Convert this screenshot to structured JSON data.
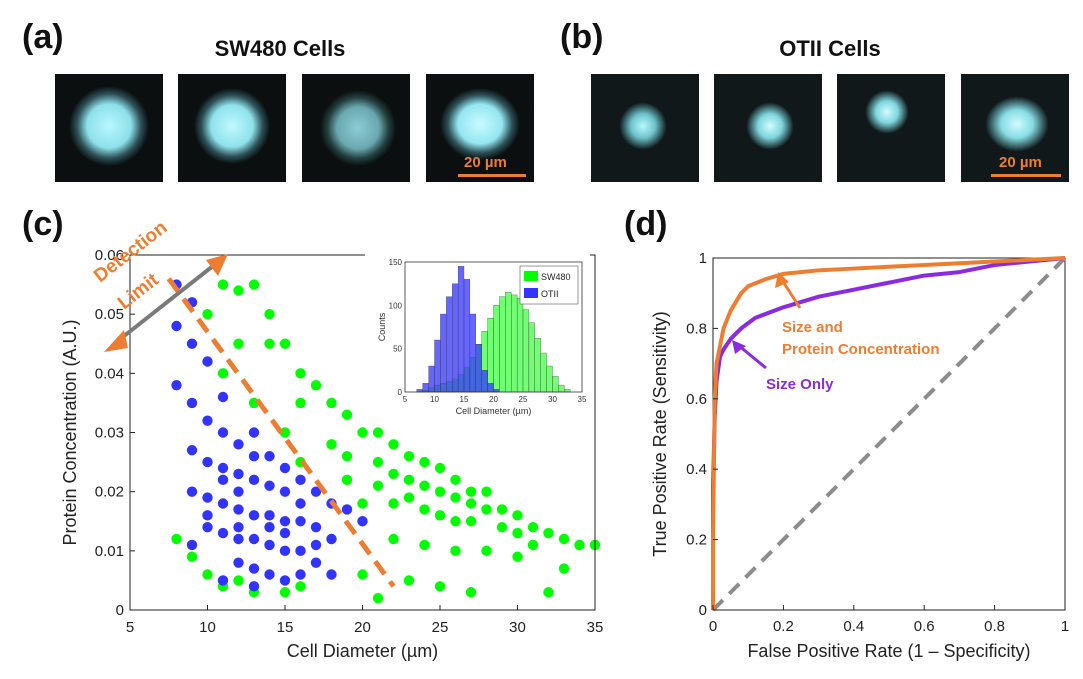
{
  "panels": {
    "a": {
      "label": "(a)",
      "title": "SW480 Cells",
      "scale_bar": "20 µm"
    },
    "b": {
      "label": "(b)",
      "title": "OTII Cells",
      "scale_bar": "20 µm"
    },
    "c": {
      "label": "(c)"
    },
    "d": {
      "label": "(d)"
    }
  },
  "colors": {
    "sw480": "#00ff00",
    "otii": "#3333ff",
    "accent_orange": "#ed7d31",
    "size_only_purple": "#8a2be2",
    "diagonal_gray": "#8c8c8c",
    "cell_glow": "#a8f0f8"
  },
  "annotations": {
    "detection": "Detection",
    "limit": "Limit",
    "size_protein_line1": "Size and",
    "size_protein_line2": "Protein Concentration",
    "size_only": "Size Only"
  },
  "chart_data": [
    {
      "id": "scatter",
      "type": "scatter",
      "xlabel": "Cell Diameter (µm)",
      "ylabel": "Protein Concentration (A.U.)",
      "xlim": [
        5,
        35
      ],
      "ylim": [
        0,
        0.06
      ],
      "xticks": [
        5,
        10,
        15,
        20,
        25,
        30,
        35
      ],
      "yticks": [
        0,
        0.01,
        0.02,
        0.03,
        0.04,
        0.05,
        0.06
      ],
      "ytick_labels": [
        "0",
        "0.01",
        "0.02",
        "0.03",
        "0.04",
        "0.05",
        "0.06"
      ],
      "grid": false,
      "series": [
        {
          "name": "SW480",
          "color": "#00ff00",
          "points": [
            [
              11,
              0.055
            ],
            [
              12,
              0.054
            ],
            [
              13,
              0.055
            ],
            [
              10,
              0.05
            ],
            [
              14,
              0.05
            ],
            [
              12,
              0.045
            ],
            [
              15,
              0.045
            ],
            [
              11,
              0.04
            ],
            [
              16,
              0.04
            ],
            [
              17,
              0.038
            ],
            [
              13,
              0.035
            ],
            [
              18,
              0.035
            ],
            [
              19,
              0.033
            ],
            [
              15,
              0.03
            ],
            [
              20,
              0.03
            ],
            [
              21,
              0.03
            ],
            [
              22,
              0.028
            ],
            [
              16,
              0.025
            ],
            [
              23,
              0.026
            ],
            [
              24,
              0.025
            ],
            [
              25,
              0.024
            ],
            [
              19,
              0.022
            ],
            [
              21,
              0.021
            ],
            [
              26,
              0.022
            ],
            [
              27,
              0.02
            ],
            [
              28,
              0.02
            ],
            [
              20,
              0.018
            ],
            [
              22,
              0.018
            ],
            [
              23,
              0.019
            ],
            [
              24,
              0.017
            ],
            [
              25,
              0.016
            ],
            [
              26,
              0.015
            ],
            [
              27,
              0.015
            ],
            [
              29,
              0.017
            ],
            [
              30,
              0.016
            ],
            [
              31,
              0.014
            ],
            [
              32,
              0.013
            ],
            [
              33,
              0.012
            ],
            [
              34,
              0.011
            ],
            [
              35,
              0.011
            ],
            [
              22,
              0.012
            ],
            [
              24,
              0.011
            ],
            [
              26,
              0.01
            ],
            [
              28,
              0.01
            ],
            [
              30,
              0.009
            ],
            [
              18,
              0.012
            ],
            [
              17,
              0.008
            ],
            [
              20,
              0.006
            ],
            [
              23,
              0.005
            ],
            [
              25,
              0.004
            ],
            [
              27,
              0.003
            ],
            [
              21,
              0.002
            ],
            [
              9,
              0.009
            ],
            [
              10,
              0.006
            ],
            [
              11,
              0.004
            ],
            [
              13,
              0.003
            ],
            [
              15,
              0.003
            ],
            [
              8,
              0.012
            ],
            [
              14,
              0.045
            ],
            [
              16,
              0.035
            ],
            [
              18,
              0.028
            ],
            [
              19,
              0.026
            ],
            [
              21,
              0.025
            ],
            [
              22,
              0.023
            ],
            [
              23,
              0.022
            ],
            [
              24,
              0.021
            ],
            [
              25,
              0.02
            ],
            [
              26,
              0.019
            ],
            [
              27,
              0.018
            ],
            [
              28,
              0.017
            ],
            [
              29,
              0.014
            ],
            [
              30,
              0.013
            ],
            [
              31,
              0.011
            ],
            [
              33,
              0.007
            ],
            [
              32,
              0.003
            ],
            [
              12,
              0.005
            ],
            [
              16,
              0.004
            ]
          ]
        },
        {
          "name": "OTII",
          "color": "#3333ff",
          "points": [
            [
              8,
              0.055
            ],
            [
              9,
              0.052
            ],
            [
              8,
              0.048
            ],
            [
              9,
              0.045
            ],
            [
              10,
              0.042
            ],
            [
              8,
              0.038
            ],
            [
              9,
              0.035
            ],
            [
              10,
              0.032
            ],
            [
              11,
              0.03
            ],
            [
              12,
              0.028
            ],
            [
              9,
              0.027
            ],
            [
              10,
              0.025
            ],
            [
              11,
              0.024
            ],
            [
              12,
              0.023
            ],
            [
              13,
              0.022
            ],
            [
              14,
              0.021
            ],
            [
              15,
              0.02
            ],
            [
              9,
              0.02
            ],
            [
              10,
              0.019
            ],
            [
              11,
              0.018
            ],
            [
              12,
              0.017
            ],
            [
              13,
              0.016
            ],
            [
              14,
              0.016
            ],
            [
              15,
              0.015
            ],
            [
              16,
              0.015
            ],
            [
              17,
              0.014
            ],
            [
              10,
              0.014
            ],
            [
              11,
              0.013
            ],
            [
              12,
              0.012
            ],
            [
              13,
              0.012
            ],
            [
              14,
              0.011
            ],
            [
              15,
              0.01
            ],
            [
              16,
              0.01
            ],
            [
              17,
              0.011
            ],
            [
              18,
              0.012
            ],
            [
              12,
              0.008
            ],
            [
              13,
              0.007
            ],
            [
              14,
              0.006
            ],
            [
              15,
              0.005
            ],
            [
              16,
              0.006
            ],
            [
              11,
              0.005
            ],
            [
              13,
              0.004
            ],
            [
              9,
              0.011
            ],
            [
              11,
              0.036
            ],
            [
              13,
              0.03
            ],
            [
              14,
              0.026
            ],
            [
              15,
              0.024
            ],
            [
              16,
              0.022
            ],
            [
              17,
              0.02
            ],
            [
              18,
              0.018
            ],
            [
              16,
              0.018
            ],
            [
              14,
              0.014
            ],
            [
              12,
              0.02
            ],
            [
              10,
              0.016
            ],
            [
              11,
              0.022
            ],
            [
              13,
              0.026
            ],
            [
              15,
              0.013
            ],
            [
              17,
              0.008
            ],
            [
              19,
              0.017
            ],
            [
              20,
              0.015
            ],
            [
              18,
              0.006
            ],
            [
              12,
              0.014
            ]
          ]
        }
      ],
      "detection_limit_line": {
        "from": [
          7.5,
          0.056
        ],
        "to": [
          22,
          0.004
        ]
      },
      "inset": {
        "type": "bar",
        "xlabel": "Cell Diameter (µm)",
        "ylabel": "Counts",
        "xlim": [
          5,
          35
        ],
        "ylim": [
          0,
          150
        ],
        "xticks": [
          5,
          10,
          15,
          20,
          25,
          30,
          35
        ],
        "yticks": [
          0,
          50,
          100,
          150
        ],
        "legend_placement": "top-right",
        "bin_width": 1,
        "series": [
          {
            "name": "SW480",
            "color": "#00ff00",
            "bins": [
              7,
              8,
              9,
              10,
              11,
              12,
              13,
              14,
              15,
              16,
              17,
              18,
              19,
              20,
              21,
              22,
              23,
              24,
              25,
              26,
              27,
              28,
              29,
              30,
              31,
              32
            ],
            "values": [
              0,
              2,
              5,
              8,
              10,
              12,
              15,
              20,
              28,
              40,
              55,
              70,
              85,
              100,
              110,
              115,
              112,
              108,
              95,
              80,
              62,
              45,
              30,
              18,
              8,
              3
            ]
          },
          {
            "name": "OTII",
            "color": "#3333ff",
            "bins": [
              7,
              8,
              9,
              10,
              11,
              12,
              13,
              14,
              15,
              16,
              17,
              18,
              19,
              20
            ],
            "values": [
              3,
              10,
              30,
              60,
              90,
              110,
              125,
              145,
              130,
              90,
              55,
              25,
              10,
              3
            ]
          }
        ]
      }
    },
    {
      "id": "roc",
      "type": "line",
      "xlabel": "False Positive Rate (1 – Specificity)",
      "ylabel": "True Positive Rate (Sensitivity)",
      "xlim": [
        0,
        1
      ],
      "ylim": [
        0,
        1
      ],
      "xticks": [
        0,
        0.2,
        0.4,
        0.6,
        0.8,
        1
      ],
      "xtick_labels": [
        "0",
        "0.2",
        "0.4",
        "0.6",
        "0.8",
        "1"
      ],
      "yticks": [
        0,
        0.2,
        0.4,
        0.6,
        0.8,
        1
      ],
      "ytick_labels": [
        "0",
        "0.2",
        "0.4",
        "0.6",
        "0.8",
        "1"
      ],
      "grid": false,
      "series": [
        {
          "name": "Size Only",
          "color": "#8a2be2",
          "x": [
            0,
            0.0,
            0.005,
            0.01,
            0.02,
            0.03,
            0.05,
            0.08,
            0.12,
            0.2,
            0.3,
            0.4,
            0.5,
            0.6,
            0.7,
            0.8,
            0.9,
            1.0
          ],
          "y": [
            0,
            0.35,
            0.55,
            0.65,
            0.72,
            0.74,
            0.77,
            0.8,
            0.83,
            0.86,
            0.89,
            0.91,
            0.93,
            0.95,
            0.96,
            0.98,
            0.99,
            1.0
          ]
        },
        {
          "name": "Size and Protein Concentration",
          "color": "#ed7d31",
          "x": [
            0,
            0.0,
            0.005,
            0.01,
            0.02,
            0.03,
            0.05,
            0.08,
            0.1,
            0.15,
            0.2,
            0.3,
            0.4,
            0.5,
            0.6,
            0.7,
            0.8,
            0.9,
            1.0
          ],
          "y": [
            0,
            0.2,
            0.6,
            0.7,
            0.75,
            0.8,
            0.85,
            0.9,
            0.92,
            0.94,
            0.955,
            0.965,
            0.97,
            0.975,
            0.98,
            0.985,
            0.99,
            0.995,
            1.0
          ]
        },
        {
          "name": "",
          "color": "#8c8c8c",
          "dashed": true,
          "x": [
            0,
            1
          ],
          "y": [
            0,
            1
          ]
        }
      ]
    }
  ]
}
